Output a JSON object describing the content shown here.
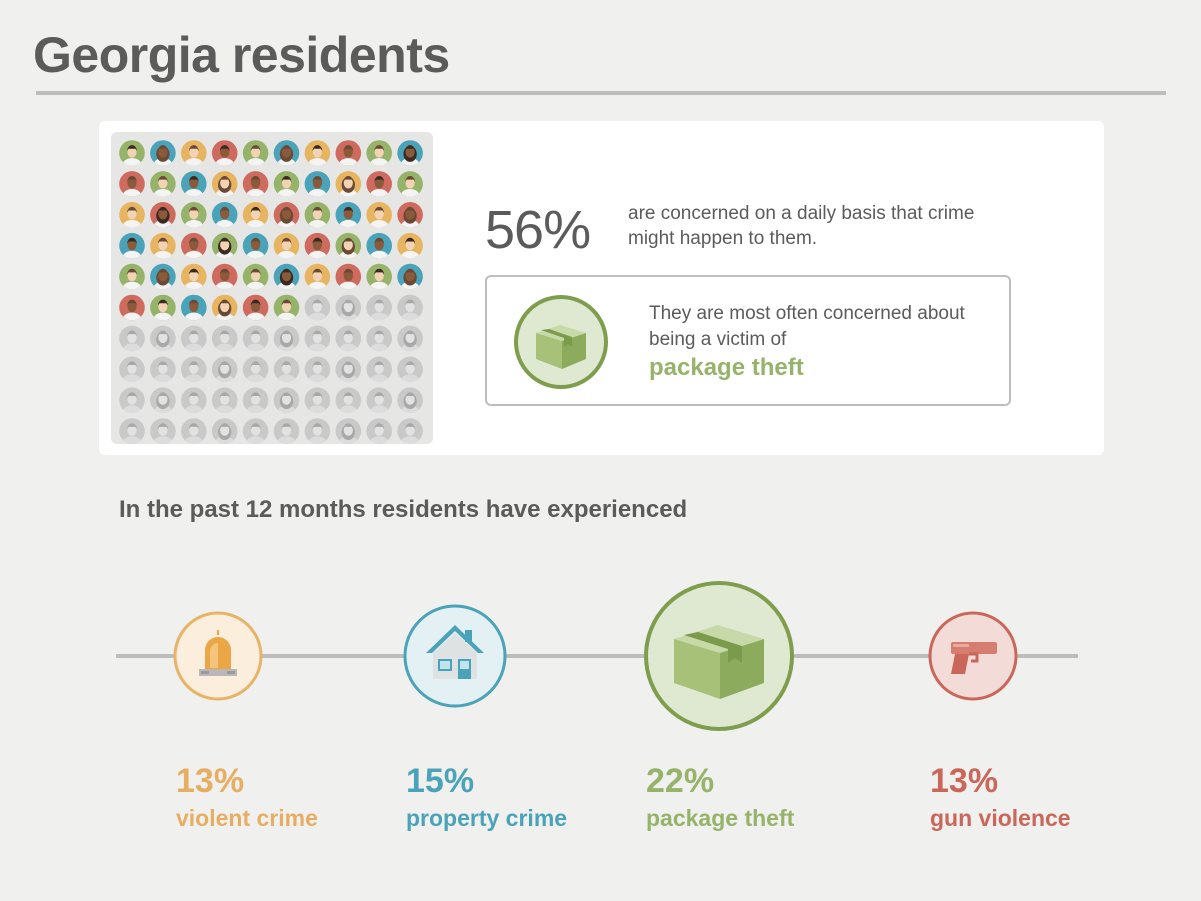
{
  "page": {
    "title": "Georgia residents"
  },
  "concern": {
    "percent": "56%",
    "caption": "are concerned on a daily basis that crime might happen to them.",
    "box_text": "They are most often concerned about being a victim of",
    "box_highlight": "package theft",
    "icon": "package-icon"
  },
  "people_grid": {
    "total": 100,
    "highlighted": 56,
    "palette": [
      "#96b36a",
      "#cf6b5e",
      "#e7b561",
      "#4aa3b8"
    ],
    "muted_color": "#c9c9c9",
    "skin_colors": [
      "#f2d3b3",
      "#c98c62",
      "#8a5a3b",
      "#f6c9a6"
    ],
    "muted_skin": "#e2e2e2"
  },
  "experience": {
    "heading": "In the past 12 months residents have experienced",
    "items": [
      {
        "percent": "13%",
        "label": "violent crime",
        "color": "#e7ae63",
        "icon": "siren-icon"
      },
      {
        "percent": "15%",
        "label": "property crime",
        "color": "#4aa3b8",
        "icon": "house-icon"
      },
      {
        "percent": "22%",
        "label": "package theft",
        "color": "#96b36a",
        "icon": "package-icon"
      },
      {
        "percent": "13%",
        "label": "gun violence",
        "color": "#c9675a",
        "icon": "gun-icon"
      }
    ]
  },
  "chart_data": {
    "type": "bar",
    "title": "In the past 12 months residents have experienced",
    "categories": [
      "violent crime",
      "property crime",
      "package theft",
      "gun violence"
    ],
    "values": [
      13,
      15,
      22,
      13
    ],
    "unit": "%"
  }
}
